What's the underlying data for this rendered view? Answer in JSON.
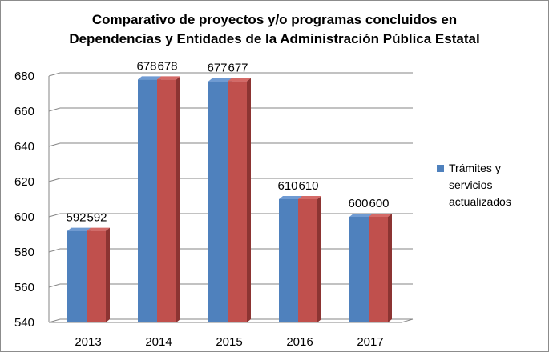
{
  "chart_data": {
    "type": "bar",
    "title_line1": "Comparativo de proyectos y/o programas concluidos en",
    "title_line2": "Dependencias y Entidades de la Administración Pública Estatal",
    "categories": [
      "2013",
      "2014",
      "2015",
      "2016",
      "2017"
    ],
    "series": [
      {
        "name": "Trámites y servicios actualizados",
        "values": [
          592,
          678,
          677,
          610,
          600
        ],
        "color": "#4f81bd"
      },
      {
        "name": "",
        "values": [
          592,
          678,
          677,
          610,
          600
        ],
        "color": "#c0504d"
      }
    ],
    "ylim": [
      540,
      680
    ],
    "yticks": [
      "540",
      "560",
      "580",
      "600",
      "620",
      "640",
      "660",
      "680"
    ],
    "grid": true,
    "legend_position": "right",
    "style": "3d-clustered"
  }
}
